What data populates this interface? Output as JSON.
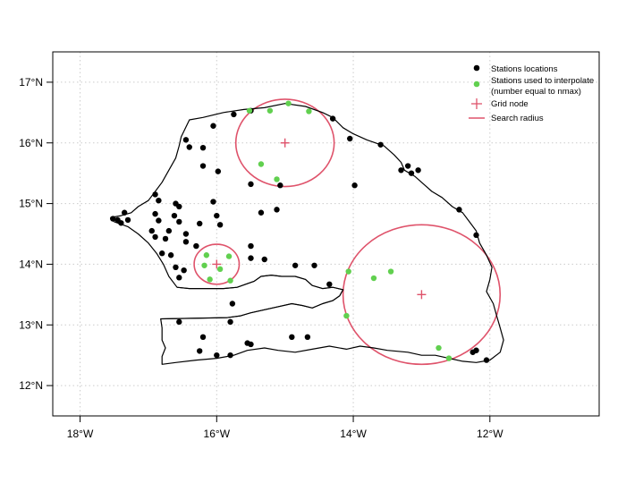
{
  "chart_data": {
    "type": "map",
    "xlim": [
      -18.4,
      -10.4
    ],
    "ylim": [
      11.5,
      17.5
    ],
    "grid": true,
    "legend_placement": "top-right",
    "x_ticks": [
      {
        "value": -18,
        "label": "18°W"
      },
      {
        "value": -16,
        "label": "16°W"
      },
      {
        "value": -14,
        "label": "14°W"
      },
      {
        "value": -12,
        "label": "12°W"
      }
    ],
    "y_ticks": [
      {
        "value": 12,
        "label": "12°N"
      },
      {
        "value": 13,
        "label": "13°N"
      },
      {
        "value": 14,
        "label": "14°N"
      },
      {
        "value": 15,
        "label": "15°N"
      },
      {
        "value": 16,
        "label": "16°N"
      },
      {
        "value": 17,
        "label": "17°N"
      }
    ],
    "legend": [
      {
        "label": "Stations locations",
        "symbol": "dot",
        "color": "#000000"
      },
      {
        "label": "Stations used to interpolate",
        "label2": "(number equal to nmax)",
        "symbol": "dot",
        "color": "#61D04F"
      },
      {
        "label": "Grid node",
        "symbol": "plus",
        "color": "#DF536B"
      },
      {
        "label": "Search radius",
        "symbol": "line",
        "color": "#DF536B"
      }
    ],
    "colors": {
      "station": "#000000",
      "used": "#61D04F",
      "grid_node": "#DF536B",
      "radius": "#DF536B",
      "border": "#000000",
      "gridline": "#cccccc"
    },
    "stations": [
      [
        -15.75,
        16.47
      ],
      [
        -15.5,
        16.53
      ],
      [
        -14.3,
        16.4
      ],
      [
        -16.05,
        16.28
      ],
      [
        -14.05,
        16.07
      ],
      [
        -13.6,
        15.97
      ],
      [
        -16.45,
        16.05
      ],
      [
        -16.4,
        15.93
      ],
      [
        -16.2,
        15.92
      ],
      [
        -16.2,
        15.62
      ],
      [
        -15.98,
        15.53
      ],
      [
        -13.3,
        15.55
      ],
      [
        -13.2,
        15.62
      ],
      [
        -13.15,
        15.5
      ],
      [
        -13.05,
        15.55
      ],
      [
        -15.07,
        15.3
      ],
      [
        -15.5,
        15.32
      ],
      [
        -13.98,
        15.3
      ],
      [
        -16.9,
        15.15
      ],
      [
        -16.85,
        15.05
      ],
      [
        -16.6,
        15.0
      ],
      [
        -16.55,
        14.95
      ],
      [
        -16.05,
        15.03
      ],
      [
        -17.35,
        14.85
      ],
      [
        -17.52,
        14.75
      ],
      [
        -17.45,
        14.73
      ],
      [
        -17.4,
        14.68
      ],
      [
        -17.3,
        14.73
      ],
      [
        -16.9,
        14.83
      ],
      [
        -16.85,
        14.72
      ],
      [
        -16.62,
        14.8
      ],
      [
        -16.0,
        14.8
      ],
      [
        -15.35,
        14.85
      ],
      [
        -15.12,
        14.9
      ],
      [
        -12.45,
        14.9
      ],
      [
        -16.95,
        14.55
      ],
      [
        -16.7,
        14.55
      ],
      [
        -16.55,
        14.7
      ],
      [
        -16.25,
        14.67
      ],
      [
        -15.95,
        14.65
      ],
      [
        -16.45,
        14.5
      ],
      [
        -16.9,
        14.45
      ],
      [
        -16.75,
        14.42
      ],
      [
        -16.45,
        14.37
      ],
      [
        -16.3,
        14.3
      ],
      [
        -15.5,
        14.3
      ],
      [
        -12.2,
        14.48
      ],
      [
        -16.8,
        14.18
      ],
      [
        -16.67,
        14.15
      ],
      [
        -16.6,
        13.95
      ],
      [
        -16.48,
        13.9
      ],
      [
        -15.5,
        14.1
      ],
      [
        -15.3,
        14.08
      ],
      [
        -14.85,
        13.98
      ],
      [
        -14.57,
        13.98
      ],
      [
        -14.35,
        13.67
      ],
      [
        -16.55,
        13.78
      ],
      [
        -15.77,
        13.35
      ],
      [
        -15.8,
        13.05
      ],
      [
        -16.55,
        13.05
      ],
      [
        -16.2,
        12.8
      ],
      [
        -15.55,
        12.7
      ],
      [
        -15.5,
        12.68
      ],
      [
        -14.9,
        12.8
      ],
      [
        -14.67,
        12.8
      ],
      [
        -16.25,
        12.57
      ],
      [
        -16.0,
        12.5
      ],
      [
        -15.8,
        12.5
      ],
      [
        -12.25,
        12.55
      ],
      [
        -12.2,
        12.58
      ],
      [
        -12.05,
        12.42
      ]
    ],
    "used_stations": [
      [
        -15.52,
        16.53
      ],
      [
        -15.22,
        16.53
      ],
      [
        -14.95,
        16.65
      ],
      [
        -14.65,
        16.52
      ],
      [
        -15.35,
        15.65
      ],
      [
        -15.12,
        15.4
      ],
      [
        -16.15,
        14.15
      ],
      [
        -15.82,
        14.13
      ],
      [
        -16.18,
        13.98
      ],
      [
        -15.95,
        13.92
      ],
      [
        -16.1,
        13.75
      ],
      [
        -15.8,
        13.73
      ],
      [
        -14.07,
        13.88
      ],
      [
        -13.45,
        13.88
      ],
      [
        -13.7,
        13.77
      ],
      [
        -14.1,
        13.15
      ],
      [
        -12.75,
        12.62
      ],
      [
        -12.6,
        12.45
      ]
    ],
    "grid_nodes": [
      {
        "lon": -15.0,
        "lat": 16.0,
        "radius_deg": 0.72
      },
      {
        "lon": -16.0,
        "lat": 14.0,
        "radius_deg": 0.33
      },
      {
        "lon": -13.0,
        "lat": 13.5,
        "radius_deg": 1.15
      }
    ]
  }
}
